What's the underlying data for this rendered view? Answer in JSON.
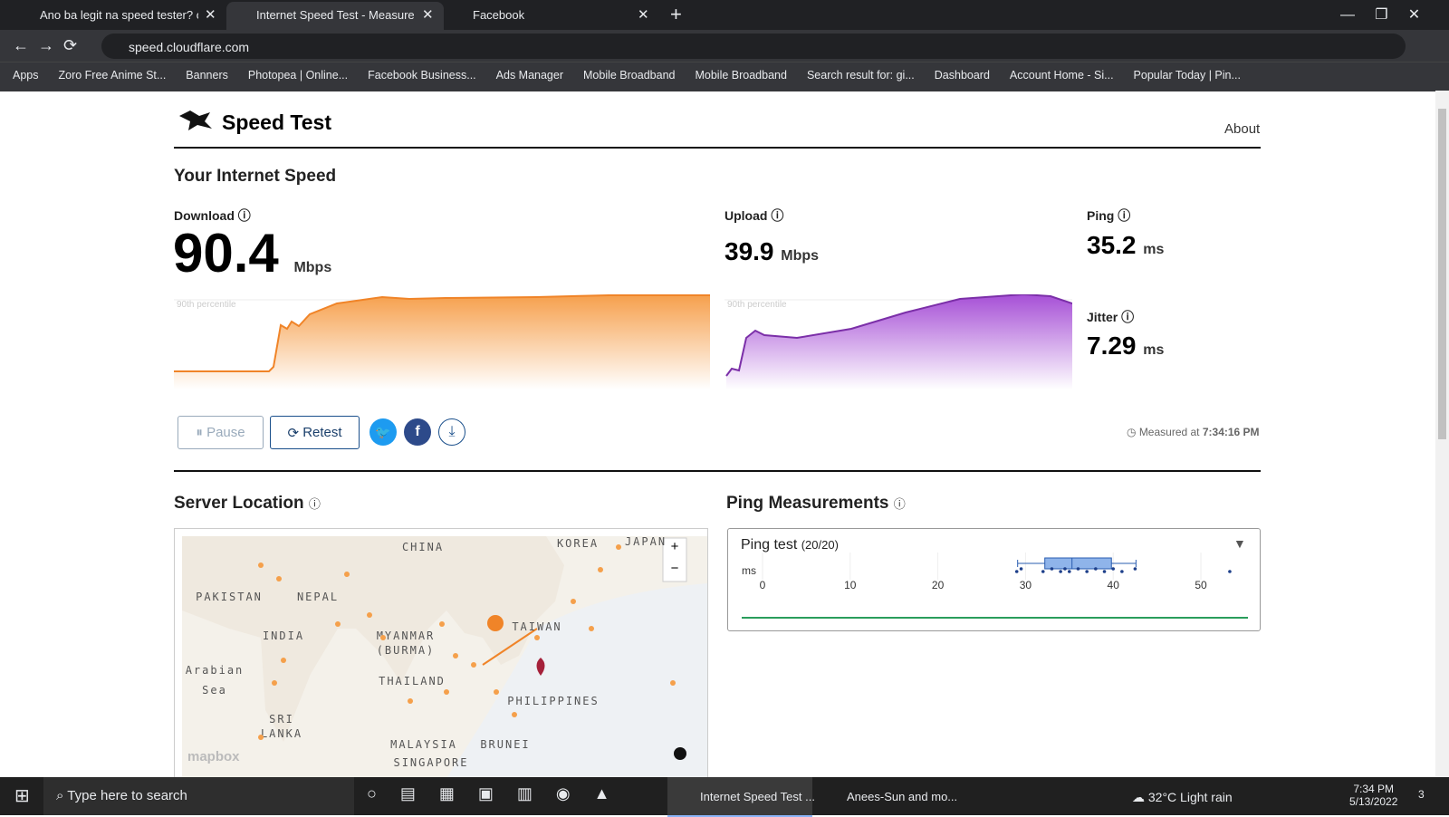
{
  "browser": {
    "tabs": [
      "Ano ba legit na speed tester? oo",
      "Internet Speed Test - Measure Ne",
      "Facebook"
    ],
    "url": "speed.cloudflare.com",
    "bookmarks": [
      "Apps",
      "Zoro Free Anime St...",
      "Banners",
      "Photopea | Online...",
      "Facebook Business...",
      "Ads Manager",
      "Mobile Broadband",
      "Mobile Broadband",
      "Search result for: gi...",
      "Dashboard",
      "Account Home - Si...",
      "Popular Today | Pin..."
    ]
  },
  "header": {
    "title": "Speed Test",
    "nav": "About"
  },
  "speed": {
    "heading": "Your Internet Speed",
    "download": {
      "label": "Download",
      "value": 90.4,
      "unit": "Mbps"
    },
    "upload": {
      "label": "Upload",
      "value": 39.9,
      "unit": "Mbps"
    },
    "ping": {
      "label": "Ping",
      "value": 35.2,
      "unit": "ms"
    },
    "jitter": {
      "label": "Jitter",
      "value": 7.29,
      "unit": "ms"
    },
    "percentile_label": "90th percentile",
    "buttons": [
      "Pause",
      "Retest"
    ],
    "measured_label": "Measured at",
    "measured_time": "7:34:16 PM"
  },
  "server": {
    "heading": "Server Location",
    "map_labels": [
      "CHINA",
      "KOREA",
      "JAPAN",
      "PAKISTAN",
      "NEPAL",
      "INDIA",
      "MYANMAR",
      "(BURMA)",
      "TAIWAN",
      "THAILAND",
      "PHILIPPINES",
      "SRI",
      "LANKA",
      "MALAYSIA",
      "BRUNEI",
      "SINGAPORE",
      "Arabian",
      "Sea"
    ],
    "attribution": "mapbox"
  },
  "ping_panel": {
    "heading": "Ping Measurements",
    "test_label": "Ping test",
    "count": "(20/20)",
    "unit": "ms",
    "ticks": [
      0,
      10,
      20,
      30,
      40,
      50
    ],
    "box": {
      "min": 29.1,
      "q1": 32.2,
      "median": 35.3,
      "q3": 39.8,
      "max": 42.6
    },
    "points": [
      29,
      29.5,
      32,
      33,
      34,
      34.5,
      35,
      36,
      37,
      38,
      39,
      40,
      41,
      42.5,
      53.3
    ]
  },
  "taskbar": {
    "search": "Type here to search",
    "apps": [
      "Internet Speed Test ...",
      "Anees-Sun and mo..."
    ],
    "weather": "32°C  Light rain",
    "time": "7:34 PM",
    "date": "5/13/2022",
    "notifications": "3"
  }
}
